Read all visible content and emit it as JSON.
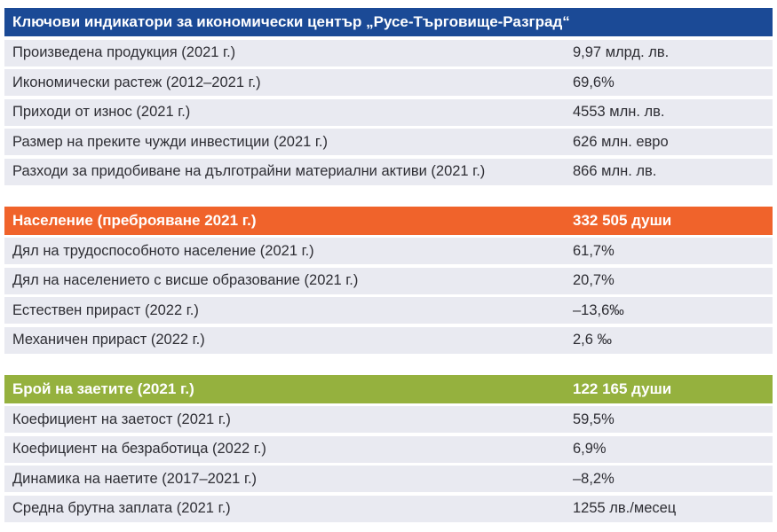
{
  "table": {
    "row_background": "#e9eaf1",
    "text_color": "#2e2e34",
    "sections": [
      {
        "title": "Ключови индикатори за икономически център „Русе-Търговище-Разград“",
        "header_value": "",
        "accent_color": "#1b4a96",
        "rows": [
          {
            "label": "Произведена продукция (2021 г.)",
            "value": "9,97 млрд. лв."
          },
          {
            "label": "Икономически растеж (2012–2021 г.)",
            "value": "69,6%"
          },
          {
            "label": "Приходи от износ (2021 г.)",
            "value": "4553 млн. лв."
          },
          {
            "label": "Размер на преките чужди инвестиции (2021 г.)",
            "value": "626 млн. евро"
          },
          {
            "label": "Разходи за придобиване на дълготрайни материални активи (2021 г.)",
            "value": "866 млн. лв."
          }
        ]
      },
      {
        "title": "Население (преброяване 2021 г.)",
        "header_value": "332 505 души",
        "accent_color": "#f0632b",
        "rows": [
          {
            "label": "Дял на трудоспособното население (2021 г.)",
            "value": "61,7%"
          },
          {
            "label": "Дял на населението с висше образование (2021 г.)",
            "value": "20,7%"
          },
          {
            "label": "Естествен прираст (2022 г.)",
            "value": "–13,6‰"
          },
          {
            "label": "Механичен прираст (2022 г.)",
            "value": "2,6 ‰"
          }
        ]
      },
      {
        "title": "Брой на заетите (2021 г.)",
        "header_value": "122 165 души",
        "accent_color": "#95b13e",
        "rows": [
          {
            "label": "Коефициент на заетост (2021 г.)",
            "value": "59,5%"
          },
          {
            "label": "Коефициент на безработица (2022 г.)",
            "value": "6,9%"
          },
          {
            "label": "Динамика на наетите (2017–2021 г.)",
            "value": "–8,2%"
          },
          {
            "label": "Средна брутна заплата (2021 г.)",
            "value": "1255 лв./месец"
          }
        ]
      }
    ]
  }
}
